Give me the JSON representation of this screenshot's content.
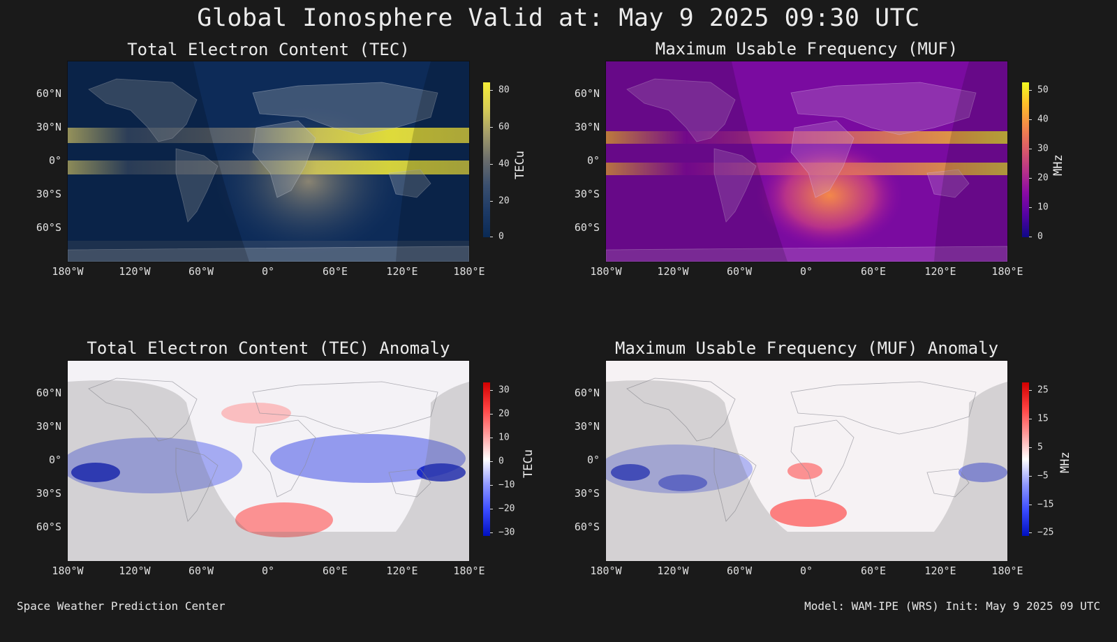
{
  "title": "Global Ionosphere Valid at: May 9 2025 09:30 UTC",
  "footer": {
    "left": "Space Weather Prediction Center",
    "right": "Model: WAM-IPE (WRS) Init: May 9 2025 09 UTC"
  },
  "axes": {
    "x_ticks": [
      "180°W",
      "120°W",
      "60°W",
      "0°",
      "60°E",
      "120°E",
      "180°E"
    ],
    "y_ticks": [
      "60°N",
      "30°N",
      "0°",
      "30°S",
      "60°S"
    ]
  },
  "chart_data": [
    {
      "type": "heatmap",
      "title": "Total Electron Content (TEC)",
      "colorbar_label": "TECu",
      "colorbar_ticks": [
        "80",
        "60",
        "40",
        "20",
        "0"
      ],
      "vlim": [
        0,
        80
      ],
      "colormap": [
        "#0a2a55",
        "#1d3a66",
        "#3a4f6e",
        "#6b6d6c",
        "#a39c6a",
        "#d8cd55",
        "#f6ee37"
      ],
      "night_shading": true
    },
    {
      "type": "heatmap",
      "title": "Maximum Usable Frequency (MUF)",
      "colorbar_label": "MHz",
      "colorbar_ticks": [
        "50",
        "40",
        "30",
        "20",
        "10",
        "0"
      ],
      "vlim": [
        0,
        50
      ],
      "colormap": [
        "#0d0887",
        "#5302a3",
        "#8b0aa5",
        "#b83289",
        "#db5c68",
        "#f48849",
        "#febd2a",
        "#f0f921"
      ],
      "night_shading": true
    },
    {
      "type": "heatmap",
      "title": "Total Electron Content (TEC) Anomaly",
      "colorbar_label": "TECu",
      "colorbar_ticks": [
        "30",
        "20",
        "10",
        "0",
        "−10",
        "−20",
        "−30"
      ],
      "vlim": [
        -30,
        30
      ],
      "colormap": [
        "#0010c0",
        "#3a4bff",
        "#8f98ff",
        "#ffffff",
        "#ff9a9a",
        "#ff4040",
        "#d00000"
      ],
      "night_shading": true
    },
    {
      "type": "heatmap",
      "title": "Maximum Usable Frequency (MUF) Anomaly",
      "colorbar_label": "MHz",
      "colorbar_ticks": [
        "25",
        "15",
        "5",
        "−5",
        "−15",
        "−25"
      ],
      "vlim": [
        -25,
        25
      ],
      "colormap": [
        "#0010c0",
        "#3a4bff",
        "#8f98ff",
        "#ffffff",
        "#ff9a9a",
        "#ff4040",
        "#d00000"
      ],
      "night_shading": true
    }
  ]
}
